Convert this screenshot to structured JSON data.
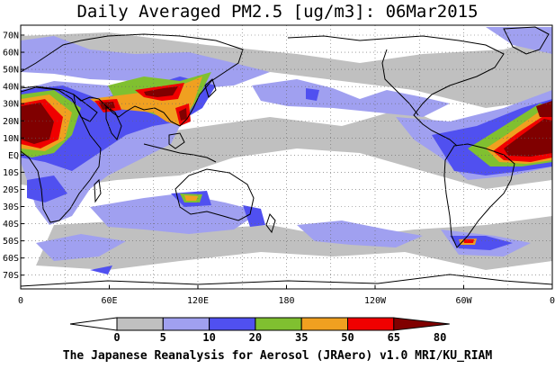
{
  "title": "Daily Averaged PM2.5 [ug/m3]: 06Mar2015",
  "credit": "The Japanese Reanalysis for Aerosol (JRAero) v1.0 MRI/KU_RIAM",
  "map": {
    "lat_labels": [
      "70N",
      "60N",
      "50N",
      "40N",
      "30N",
      "20N",
      "10N",
      "EQ",
      "10S",
      "20S",
      "30S",
      "40S",
      "50S",
      "60S",
      "70S"
    ],
    "lon_labels": [
      "0",
      "60E",
      "120E",
      "180",
      "120W",
      "60W",
      "0"
    ],
    "grid": "dotted",
    "ocean_color": "#ffffff",
    "coast_color": "#000000"
  },
  "colorbar": {
    "boundaries": [
      "0",
      "5",
      "10",
      "20",
      "35",
      "50",
      "65",
      "80"
    ],
    "colors": [
      "#ffffff",
      "#c0c0c0",
      "#a0a0f0",
      "#5050f0",
      "#80c030",
      "#f0a020",
      "#f00000",
      "#800000"
    ],
    "extend": "both"
  }
}
